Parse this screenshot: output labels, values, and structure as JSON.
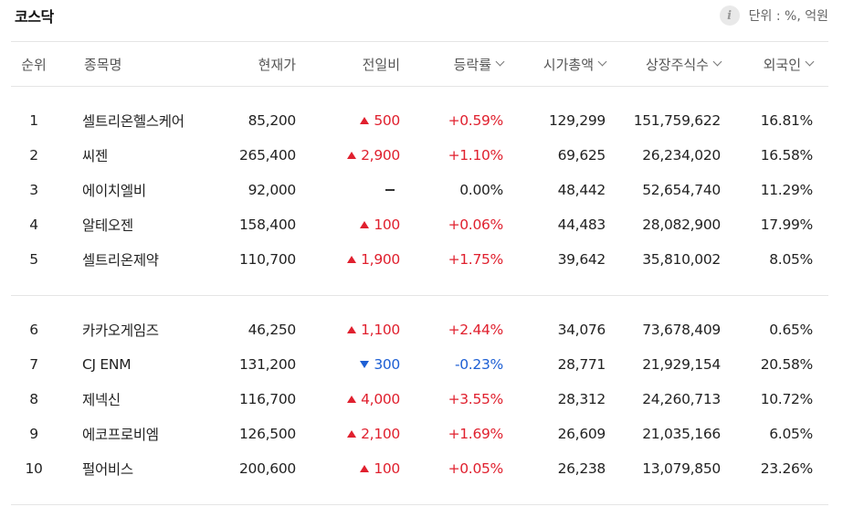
{
  "title": "코스닥",
  "unit_label": "단위 : %, 억원",
  "columns": {
    "rank": "순위",
    "name": "종목명",
    "price": "현재가",
    "diff": "전일비",
    "rate": "등락률",
    "market_cap": "시가총액",
    "shares": "상장주식수",
    "foreign": "외국인"
  },
  "colors": {
    "up": "#e0202e",
    "down": "#1d5fd4"
  },
  "group1": [
    {
      "rank": "1",
      "name": "셀트리온헬스케어",
      "price": "85,200",
      "dir": "up",
      "diff": "500",
      "rate": "+0.59%",
      "cap": "129,299",
      "shares": "151,759,622",
      "foreign": "16.81%"
    },
    {
      "rank": "2",
      "name": "씨젠",
      "price": "265,400",
      "dir": "up",
      "diff": "2,900",
      "rate": "+1.10%",
      "cap": "69,625",
      "shares": "26,234,020",
      "foreign": "16.58%"
    },
    {
      "rank": "3",
      "name": "에이치엘비",
      "price": "92,000",
      "dir": "flat",
      "diff": "",
      "rate": "0.00%",
      "cap": "48,442",
      "shares": "52,654,740",
      "foreign": "11.29%"
    },
    {
      "rank": "4",
      "name": "알테오젠",
      "price": "158,400",
      "dir": "up",
      "diff": "100",
      "rate": "+0.06%",
      "cap": "44,483",
      "shares": "28,082,900",
      "foreign": "17.99%"
    },
    {
      "rank": "5",
      "name": "셀트리온제약",
      "price": "110,700",
      "dir": "up",
      "diff": "1,900",
      "rate": "+1.75%",
      "cap": "39,642",
      "shares": "35,810,002",
      "foreign": "8.05%"
    }
  ],
  "group2": [
    {
      "rank": "6",
      "name": "카카오게임즈",
      "price": "46,250",
      "dir": "up",
      "diff": "1,100",
      "rate": "+2.44%",
      "cap": "34,076",
      "shares": "73,678,409",
      "foreign": "0.65%"
    },
    {
      "rank": "7",
      "name": "CJ ENM",
      "price": "131,200",
      "dir": "down",
      "diff": "300",
      "rate": "-0.23%",
      "cap": "28,771",
      "shares": "21,929,154",
      "foreign": "20.58%"
    },
    {
      "rank": "8",
      "name": "제넥신",
      "price": "116,700",
      "dir": "up",
      "diff": "4,000",
      "rate": "+3.55%",
      "cap": "28,312",
      "shares": "24,260,713",
      "foreign": "10.72%"
    },
    {
      "rank": "9",
      "name": "에코프로비엠",
      "price": "126,500",
      "dir": "up",
      "diff": "2,100",
      "rate": "+1.69%",
      "cap": "26,609",
      "shares": "21,035,166",
      "foreign": "6.05%"
    },
    {
      "rank": "10",
      "name": "펄어비스",
      "price": "200,600",
      "dir": "up",
      "diff": "100",
      "rate": "+0.05%",
      "cap": "26,238",
      "shares": "13,079,850",
      "foreign": "23.26%"
    }
  ]
}
